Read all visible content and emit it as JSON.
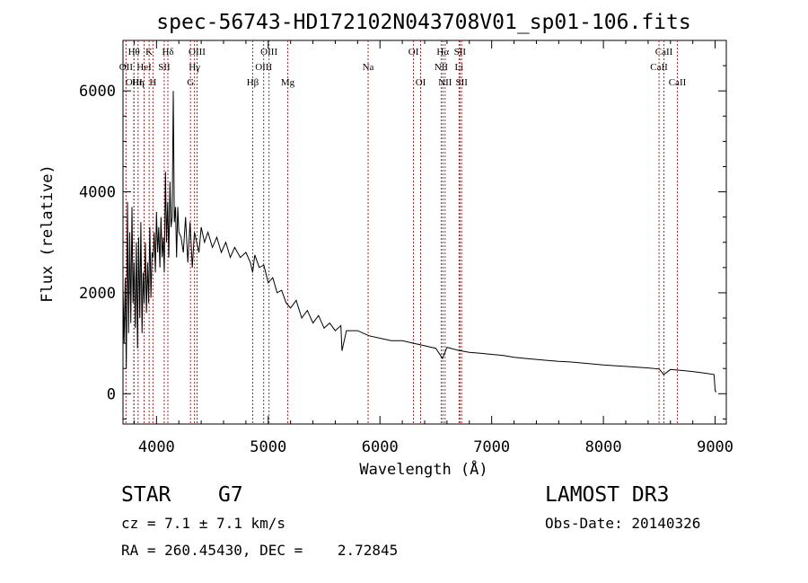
{
  "chart_data": {
    "type": "line",
    "title": "spec-56743-HD172102N043708V01_sp01-106.fits",
    "xlabel": "Wavelength (Å)",
    "ylabel": "Flux (relative)",
    "xlim": [
      3700,
      9100
    ],
    "ylim": [
      -600,
      7000
    ],
    "xticks": [
      4000,
      5000,
      6000,
      7000,
      8000,
      9000
    ],
    "yticks": [
      0,
      2000,
      4000,
      6000
    ],
    "series": [
      {
        "name": "flux",
        "x": [
          3700,
          3710,
          3720,
          3730,
          3740,
          3750,
          3760,
          3770,
          3780,
          3790,
          3800,
          3810,
          3820,
          3830,
          3840,
          3850,
          3860,
          3870,
          3880,
          3890,
          3900,
          3910,
          3920,
          3930,
          3940,
          3950,
          3960,
          3970,
          3980,
          3990,
          4000,
          4010,
          4020,
          4030,
          4040,
          4050,
          4060,
          4070,
          4080,
          4090,
          4100,
          4110,
          4120,
          4130,
          4140,
          4150,
          4160,
          4170,
          4180,
          4190,
          4200,
          4220,
          4240,
          4260,
          4280,
          4300,
          4320,
          4340,
          4360,
          4380,
          4400,
          4430,
          4460,
          4500,
          4540,
          4580,
          4620,
          4660,
          4700,
          4750,
          4800,
          4840,
          4860,
          4880,
          4920,
          4960,
          5000,
          5040,
          5080,
          5120,
          5160,
          5200,
          5250,
          5300,
          5350,
          5400,
          5450,
          5500,
          5550,
          5600,
          5650,
          5660,
          5700,
          5800,
          5900,
          6000,
          6100,
          6200,
          6300,
          6400,
          6500,
          6560,
          6600,
          6700,
          6800,
          6900,
          7000,
          7100,
          7200,
          7300,
          7400,
          7500,
          7600,
          7700,
          7800,
          7900,
          8000,
          8100,
          8200,
          8300,
          8400,
          8500,
          8540,
          8600,
          8700,
          8800,
          8900,
          8990,
          9000,
          9010
        ],
        "y": [
          2100,
          1000,
          2300,
          500,
          3800,
          1200,
          3200,
          1400,
          3700,
          1800,
          2600,
          1300,
          3000,
          900,
          3100,
          1500,
          3400,
          1200,
          2400,
          1800,
          3000,
          1600,
          2600,
          1800,
          3300,
          1900,
          2800,
          2700,
          3200,
          2400,
          3600,
          2800,
          3300,
          2500,
          3500,
          2700,
          3100,
          2400,
          4400,
          3000,
          3800,
          2700,
          4200,
          3300,
          3500,
          6000,
          3400,
          3700,
          2700,
          3700,
          3200,
          3100,
          2800,
          3500,
          2600,
          3400,
          2500,
          3200,
          3000,
          2800,
          3300,
          3000,
          3200,
          2900,
          3100,
          2800,
          3000,
          2700,
          2900,
          2700,
          2800,
          2600,
          2400,
          2750,
          2500,
          2550,
          2200,
          2300,
          2000,
          2050,
          1800,
          1700,
          1850,
          1500,
          1650,
          1400,
          1550,
          1300,
          1400,
          1250,
          1350,
          850,
          1250,
          1250,
          1150,
          1100,
          1050,
          1050,
          1000,
          950,
          900,
          700,
          920,
          860,
          820,
          800,
          780,
          760,
          720,
          700,
          680,
          660,
          640,
          630,
          610,
          590,
          570,
          555,
          540,
          525,
          510,
          490,
          380,
          480,
          460,
          440,
          410,
          380,
          60,
          30
        ]
      }
    ],
    "lines": [
      {
        "name": "OII",
        "x": 3727,
        "row": 2
      },
      {
        "name": "Hθ",
        "x": 3798,
        "row": 1
      },
      {
        "name": "OIII",
        "x": 3798,
        "row": 3
      },
      {
        "name": "K",
        "x": 3934,
        "row": 1
      },
      {
        "name": "HeI",
        "x": 3889,
        "row": 2
      },
      {
        "name": "Hη",
        "x": 3835,
        "row": 3
      },
      {
        "name": "SII",
        "x": 4069,
        "row": 2
      },
      {
        "name": "H",
        "x": 3968,
        "row": 3
      },
      {
        "name": "Hδ",
        "x": 4102,
        "row": 1
      },
      {
        "name": "OIII",
        "x": 4363,
        "row": 1
      },
      {
        "name": "Hγ",
        "x": 4340,
        "row": 2
      },
      {
        "name": "G",
        "x": 4304,
        "row": 3
      },
      {
        "name": "OIII",
        "x": 5007,
        "row": 1
      },
      {
        "name": "OIII",
        "x": 4959,
        "row": 2
      },
      {
        "name": "Hβ",
        "x": 4861,
        "row": 3
      },
      {
        "name": "Mg",
        "x": 5175,
        "row": 3
      },
      {
        "name": "Na",
        "x": 5894,
        "row": 2
      },
      {
        "name": "OI",
        "x": 6300,
        "row": 1
      },
      {
        "name": "OI",
        "x": 6364,
        "row": 3
      },
      {
        "name": "Hα",
        "x": 6563,
        "row": 1
      },
      {
        "name": "SII",
        "x": 6716,
        "row": 1
      },
      {
        "name": "NII",
        "x": 6548,
        "row": 2
      },
      {
        "name": "Li",
        "x": 6708,
        "row": 2
      },
      {
        "name": "NII",
        "x": 6583,
        "row": 3
      },
      {
        "name": "SII",
        "x": 6731,
        "row": 3
      },
      {
        "name": "CaII",
        "x": 8542,
        "row": 1
      },
      {
        "name": "CaII",
        "x": 8498,
        "row": 2
      },
      {
        "name": "CaII",
        "x": 8662,
        "row": 3
      }
    ]
  },
  "info": {
    "class_label": "STAR",
    "subclass": "G7",
    "survey": "LAMOST DR3",
    "cz": "cz = 7.1 ± 7.1 km/s",
    "obs_date": "Obs-Date: 20140326",
    "coords": "RA = 260.45430, DEC =    2.72845"
  }
}
